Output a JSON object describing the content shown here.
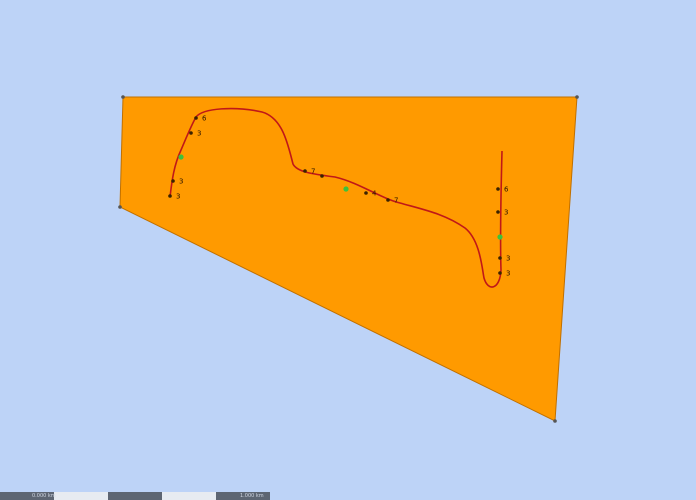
{
  "colors": {
    "background": "#bdd3f7",
    "polygon_fill": "#ff9a00",
    "polygon_stroke": "#c07000",
    "route": "#c01818",
    "node": "#3a2200",
    "node_highlight": "#3cc23c",
    "scale_dark": "#5d6572",
    "scale_light": "#e7ebf1"
  },
  "map": {
    "layer": "polygon-with-route",
    "route_nodes": [
      {
        "id": "n1",
        "label": "6",
        "highlight": false
      },
      {
        "id": "n2",
        "label": "3",
        "highlight": false
      },
      {
        "id": "n3",
        "label": "",
        "highlight": true
      },
      {
        "id": "n4",
        "label": "3",
        "highlight": false
      },
      {
        "id": "n5",
        "label": "3",
        "highlight": false
      },
      {
        "id": "n6",
        "label": "7",
        "highlight": false
      },
      {
        "id": "n7",
        "label": "",
        "highlight": false
      },
      {
        "id": "n8",
        "label": "",
        "highlight": true
      },
      {
        "id": "n9",
        "label": "4",
        "highlight": false
      },
      {
        "id": "n10",
        "label": "7",
        "highlight": false
      },
      {
        "id": "n11",
        "label": "6",
        "highlight": false
      },
      {
        "id": "n12",
        "label": "3",
        "highlight": false
      },
      {
        "id": "n13",
        "label": "",
        "highlight": true
      },
      {
        "id": "n14",
        "label": "3",
        "highlight": false
      },
      {
        "id": "n15",
        "label": "3",
        "highlight": false
      }
    ]
  },
  "scale_bar": {
    "left_label": "0.000 km",
    "right_label": "1.000 km",
    "segments": [
      "dark",
      "light",
      "dark",
      "light",
      "dark"
    ]
  }
}
